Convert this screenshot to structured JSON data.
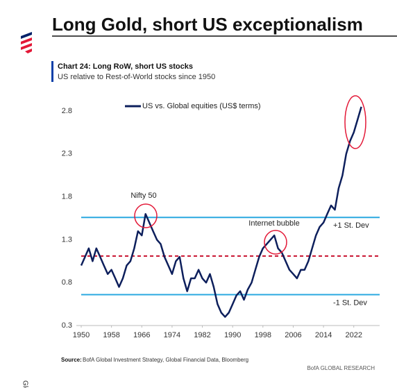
{
  "chart_data": {
    "type": "line",
    "title": "Long Gold, short US exceptionalism",
    "chart_label": "Chart 24: Long RoW, short US stocks",
    "subtitle": "US relative to Rest-of-World stocks since 1950",
    "x": [
      1950,
      1951,
      1952,
      1953,
      1954,
      1955,
      1956,
      1957,
      1958,
      1959,
      1960,
      1961,
      1962,
      1963,
      1964,
      1965,
      1966,
      1967,
      1968,
      1969,
      1970,
      1971,
      1972,
      1973,
      1974,
      1975,
      1976,
      1977,
      1978,
      1979,
      1980,
      1981,
      1982,
      1983,
      1984,
      1985,
      1986,
      1987,
      1988,
      1989,
      1990,
      1991,
      1992,
      1993,
      1994,
      1995,
      1996,
      1997,
      1998,
      1999,
      2000,
      2001,
      2002,
      2003,
      2004,
      2005,
      2006,
      2007,
      2008,
      2009,
      2010,
      2011,
      2012,
      2013,
      2014,
      2015,
      2016,
      2017,
      2018,
      2019,
      2020,
      2021,
      2022,
      2023,
      2024
    ],
    "series": [
      {
        "name": "US vs. Global equities (US$ terms)",
        "color": "#0d1f5c",
        "values": [
          1.0,
          1.1,
          1.2,
          1.05,
          1.2,
          1.1,
          1.0,
          0.9,
          0.95,
          0.85,
          0.75,
          0.85,
          1.0,
          1.05,
          1.2,
          1.4,
          1.35,
          1.6,
          1.5,
          1.4,
          1.3,
          1.25,
          1.1,
          1.0,
          0.9,
          1.05,
          1.1,
          0.85,
          0.7,
          0.85,
          0.85,
          0.95,
          0.85,
          0.8,
          0.9,
          0.75,
          0.55,
          0.45,
          0.4,
          0.45,
          0.55,
          0.65,
          0.7,
          0.6,
          0.72,
          0.8,
          0.95,
          1.1,
          1.2,
          1.25,
          1.3,
          1.35,
          1.2,
          1.15,
          1.05,
          0.95,
          0.9,
          0.85,
          0.95,
          0.95,
          1.05,
          1.2,
          1.35,
          1.45,
          1.5,
          1.6,
          1.7,
          1.65,
          1.9,
          2.05,
          2.3,
          2.45,
          2.55,
          2.7,
          2.85
        ]
      }
    ],
    "xlim": [
      1950,
      2027
    ],
    "xticks": [
      1950,
      1958,
      1966,
      1974,
      1982,
      1990,
      1998,
      2006,
      2014,
      2022
    ],
    "ylim": [
      0.3,
      2.95
    ],
    "yticks": [
      0.3,
      0.8,
      1.3,
      1.8,
      2.3,
      2.8
    ],
    "grid": false,
    "reference_lines": [
      {
        "value": 1.56,
        "label": "+1 St. Dev",
        "color": "#29a8e0",
        "style": "solid"
      },
      {
        "value": 1.11,
        "color": "#c8102e",
        "style": "dashed"
      },
      {
        "value": 0.66,
        "label": "-1 St. Dev",
        "color": "#29a8e0",
        "style": "solid"
      }
    ],
    "annotations": [
      "Nifty 50",
      "Internet bubble"
    ],
    "source_label": "Source:",
    "source": "BofA Global Investment Strategy, Global Financial Data, Bloomberg",
    "brand": "BofA GLOBAL RESEARCH",
    "side_text": "Glob"
  }
}
